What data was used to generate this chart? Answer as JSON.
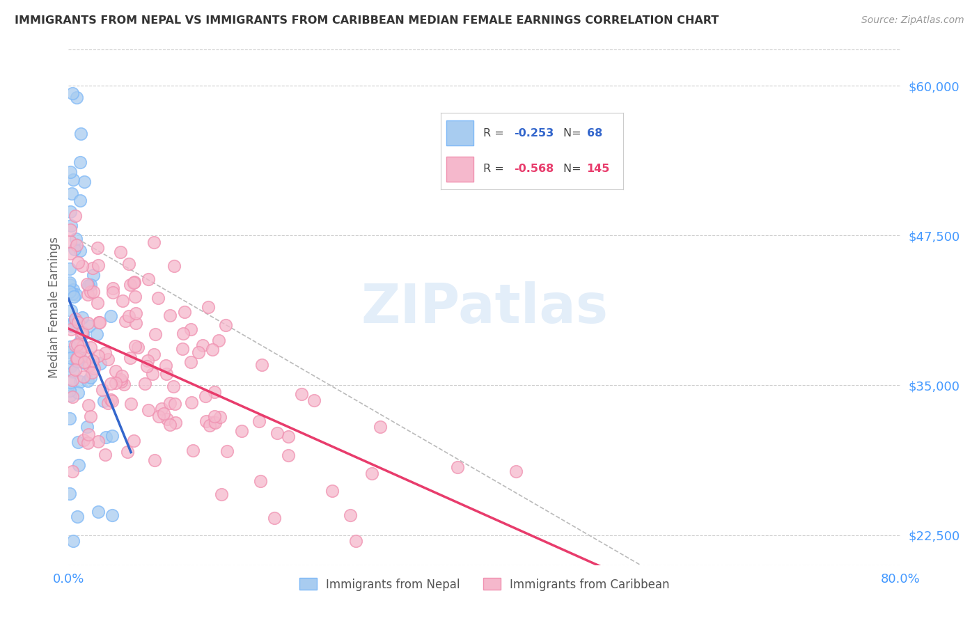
{
  "title": "IMMIGRANTS FROM NEPAL VS IMMIGRANTS FROM CARIBBEAN MEDIAN FEMALE EARNINGS CORRELATION CHART",
  "source": "Source: ZipAtlas.com",
  "ylabel": "Median Female Earnings",
  "xlim": [
    0.0,
    0.8
  ],
  "ylim": [
    20000,
    63000
  ],
  "yticks": [
    22500,
    35000,
    47500,
    60000
  ],
  "ytick_labels": [
    "$22,500",
    "$35,000",
    "$47,500",
    "$60,000"
  ],
  "xtick_vals": [
    0.0,
    0.1,
    0.2,
    0.3,
    0.4,
    0.5,
    0.6,
    0.7,
    0.8
  ],
  "xtick_labels": [
    "0.0%",
    "",
    "",
    "",
    "",
    "",
    "",
    "",
    "80.0%"
  ],
  "nepal_color": "#a8ccf0",
  "nepal_edge_color": "#7eb8f7",
  "caribbean_color": "#f5b8cc",
  "caribbean_edge_color": "#f090b0",
  "nepal_line_color": "#3366cc",
  "caribbean_line_color": "#e83c6c",
  "nepal_R": -0.253,
  "nepal_N": 68,
  "caribbean_R": -0.568,
  "caribbean_N": 145,
  "watermark": "ZIPatlas",
  "background_color": "#ffffff",
  "grid_color": "#cccccc",
  "nepal_seed": 42,
  "caribbean_seed": 99
}
